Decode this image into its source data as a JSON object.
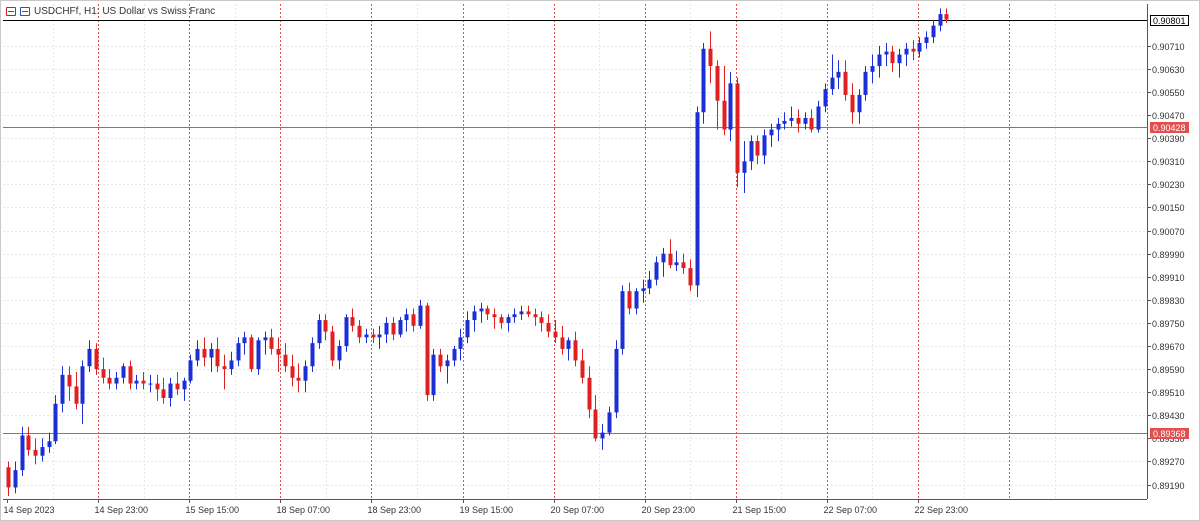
{
  "window": {
    "title": "USDCHFf, H1:  US Dollar vs Swiss Franc",
    "icons": [
      "chart-window-icon",
      "chart-properties-icon"
    ]
  },
  "colors": {
    "background": "#ffffff",
    "grid": "#e6e6e6",
    "bull": "#1a2fd6",
    "bear": "#e02020",
    "separator": "#e05050",
    "level_line": "#e05050",
    "bid_line": "#000000",
    "axis_text": "#333333"
  },
  "price_badges": {
    "bid": "0.90801",
    "level_upper": "0.90428",
    "level_lower": "0.89368"
  },
  "chart_data": {
    "type": "candlestick",
    "symbol": "USDCHFf",
    "timeframe": "H1",
    "description": "US Dollar vs Swiss Franc",
    "y_ticks": [
      "0.90710",
      "0.90630",
      "0.90550",
      "0.90470",
      "0.90390",
      "0.90310",
      "0.90230",
      "0.90150",
      "0.90070",
      "0.89990",
      "0.89910",
      "0.89830",
      "0.89750",
      "0.89670",
      "0.89590",
      "0.89510",
      "0.89430",
      "0.89350",
      "0.89270",
      "0.89190"
    ],
    "ylim": [
      0.8914,
      0.90855
    ],
    "x_labels": [
      "14 Sep 2023",
      "14 Sep 23:00",
      "15 Sep 15:00",
      "18 Sep 07:00",
      "18 Sep 23:00",
      "19 Sep 15:00",
      "20 Sep 07:00",
      "20 Sep 23:00",
      "21 Sep 15:00",
      "22 Sep 07:00",
      "22 Sep 23:00"
    ],
    "horizontal_levels": [
      0.90428,
      0.89368
    ],
    "bid_price": 0.90801,
    "grid": true,
    "candles": [
      [
        0.8925,
        0.8927,
        0.8915,
        0.8918
      ],
      [
        0.8918,
        0.8927,
        0.8916,
        0.8924
      ],
      [
        0.8924,
        0.8939,
        0.8922,
        0.8936
      ],
      [
        0.8936,
        0.8939,
        0.8929,
        0.8931
      ],
      [
        0.8931,
        0.8935,
        0.8926,
        0.8929
      ],
      [
        0.8929,
        0.8935,
        0.8927,
        0.8932
      ],
      [
        0.8932,
        0.8937,
        0.893,
        0.8934
      ],
      [
        0.8934,
        0.895,
        0.8933,
        0.8947
      ],
      [
        0.8947,
        0.896,
        0.8944,
        0.8957
      ],
      [
        0.8957,
        0.896,
        0.8948,
        0.8953
      ],
      [
        0.8953,
        0.8958,
        0.8945,
        0.8947
      ],
      [
        0.8947,
        0.8962,
        0.894,
        0.896
      ],
      [
        0.896,
        0.8969,
        0.8958,
        0.8966
      ],
      [
        0.8966,
        0.8968,
        0.8957,
        0.8959
      ],
      [
        0.8959,
        0.8963,
        0.8954,
        0.8956
      ],
      [
        0.8956,
        0.8959,
        0.8952,
        0.8954
      ],
      [
        0.8954,
        0.8958,
        0.8952,
        0.8956
      ],
      [
        0.8956,
        0.8961,
        0.8954,
        0.896
      ],
      [
        0.896,
        0.8962,
        0.8952,
        0.8954
      ],
      [
        0.8954,
        0.8957,
        0.8952,
        0.8955
      ],
      [
        0.8955,
        0.8958,
        0.8952,
        0.8954
      ],
      [
        0.8954,
        0.8957,
        0.8951,
        0.8954
      ],
      [
        0.8954,
        0.8957,
        0.8948,
        0.8952
      ],
      [
        0.8952,
        0.8956,
        0.8947,
        0.8949
      ],
      [
        0.8949,
        0.8956,
        0.8946,
        0.8954
      ],
      [
        0.8954,
        0.8958,
        0.895,
        0.8952
      ],
      [
        0.8952,
        0.8956,
        0.8948,
        0.8955
      ],
      [
        0.8955,
        0.8964,
        0.8954,
        0.8962
      ],
      [
        0.8962,
        0.8969,
        0.896,
        0.8966
      ],
      [
        0.8966,
        0.897,
        0.896,
        0.8963
      ],
      [
        0.8963,
        0.8968,
        0.8958,
        0.8966
      ],
      [
        0.8966,
        0.897,
        0.8958,
        0.896
      ],
      [
        0.896,
        0.8964,
        0.8952,
        0.8959
      ],
      [
        0.8959,
        0.8965,
        0.8957,
        0.8962
      ],
      [
        0.8962,
        0.897,
        0.896,
        0.8968
      ],
      [
        0.8968,
        0.8972,
        0.8964,
        0.897
      ],
      [
        0.897,
        0.8971,
        0.8958,
        0.8959
      ],
      [
        0.8959,
        0.897,
        0.8957,
        0.8969
      ],
      [
        0.8969,
        0.8972,
        0.8964,
        0.897
      ],
      [
        0.897,
        0.8973,
        0.8964,
        0.8966
      ],
      [
        0.8966,
        0.897,
        0.8958,
        0.8964
      ],
      [
        0.8964,
        0.8968,
        0.8958,
        0.896
      ],
      [
        0.896,
        0.8964,
        0.8953,
        0.8956
      ],
      [
        0.8956,
        0.8961,
        0.8951,
        0.8955
      ],
      [
        0.8955,
        0.8962,
        0.8951,
        0.896
      ],
      [
        0.896,
        0.897,
        0.8958,
        0.8968
      ],
      [
        0.8968,
        0.8978,
        0.8966,
        0.8976
      ],
      [
        0.8976,
        0.8978,
        0.8969,
        0.8972
      ],
      [
        0.8972,
        0.8974,
        0.896,
        0.8962
      ],
      [
        0.8962,
        0.8969,
        0.8959,
        0.8967
      ],
      [
        0.8967,
        0.8978,
        0.8965,
        0.8977
      ],
      [
        0.8977,
        0.898,
        0.8972,
        0.8974
      ],
      [
        0.8974,
        0.8976,
        0.8968,
        0.897
      ],
      [
        0.897,
        0.8973,
        0.8968,
        0.8971
      ],
      [
        0.8971,
        0.8973,
        0.8968,
        0.897
      ],
      [
        0.897,
        0.8974,
        0.8966,
        0.8971
      ],
      [
        0.8971,
        0.8977,
        0.8968,
        0.8975
      ],
      [
        0.8975,
        0.8977,
        0.8969,
        0.8971
      ],
      [
        0.8971,
        0.8977,
        0.897,
        0.8976
      ],
      [
        0.8976,
        0.898,
        0.8972,
        0.8978
      ],
      [
        0.8978,
        0.898,
        0.8972,
        0.8974
      ],
      [
        0.8974,
        0.8983,
        0.8973,
        0.8981
      ],
      [
        0.8981,
        0.8982,
        0.8948,
        0.895
      ],
      [
        0.895,
        0.8966,
        0.8948,
        0.8964
      ],
      [
        0.8964,
        0.8966,
        0.8958,
        0.896
      ],
      [
        0.896,
        0.8964,
        0.8954,
        0.8962
      ],
      [
        0.8962,
        0.8967,
        0.896,
        0.8966
      ],
      [
        0.8966,
        0.8973,
        0.8962,
        0.897
      ],
      [
        0.897,
        0.8979,
        0.8968,
        0.8976
      ],
      [
        0.8976,
        0.8981,
        0.8972,
        0.8979
      ],
      [
        0.8979,
        0.8982,
        0.8975,
        0.898
      ],
      [
        0.898,
        0.8981,
        0.8976,
        0.8978
      ],
      [
        0.8978,
        0.898,
        0.8973,
        0.8977
      ],
      [
        0.8977,
        0.8978,
        0.8973,
        0.8975
      ],
      [
        0.8975,
        0.8978,
        0.8972,
        0.8977
      ],
      [
        0.8977,
        0.898,
        0.8975,
        0.8978
      ],
      [
        0.8978,
        0.8981,
        0.8976,
        0.8979
      ],
      [
        0.8979,
        0.8981,
        0.8977,
        0.8978
      ],
      [
        0.8978,
        0.898,
        0.8974,
        0.8977
      ],
      [
        0.8977,
        0.8979,
        0.8972,
        0.8975
      ],
      [
        0.8975,
        0.8978,
        0.897,
        0.8972
      ],
      [
        0.8972,
        0.8976,
        0.8968,
        0.897
      ],
      [
        0.897,
        0.8974,
        0.8964,
        0.8966
      ],
      [
        0.8966,
        0.897,
        0.8962,
        0.8969
      ],
      [
        0.8969,
        0.8972,
        0.896,
        0.8962
      ],
      [
        0.8962,
        0.8966,
        0.8954,
        0.8956
      ],
      [
        0.8956,
        0.896,
        0.8942,
        0.8945
      ],
      [
        0.8945,
        0.895,
        0.8934,
        0.8935
      ],
      [
        0.8935,
        0.894,
        0.8931,
        0.8937
      ],
      [
        0.8937,
        0.8946,
        0.8936,
        0.8944
      ],
      [
        0.8944,
        0.8969,
        0.8942,
        0.8966
      ],
      [
        0.8966,
        0.8988,
        0.8964,
        0.8986
      ],
      [
        0.8986,
        0.8989,
        0.8978,
        0.898
      ],
      [
        0.898,
        0.8987,
        0.8978,
        0.8986
      ],
      [
        0.8986,
        0.899,
        0.8982,
        0.8987
      ],
      [
        0.8987,
        0.8993,
        0.8985,
        0.899
      ],
      [
        0.899,
        0.8998,
        0.8988,
        0.8996
      ],
      [
        0.8996,
        0.9001,
        0.8991,
        0.8999
      ],
      [
        0.8999,
        0.9004,
        0.8994,
        0.8995
      ],
      [
        0.8995,
        0.9,
        0.8993,
        0.8996
      ],
      [
        0.8996,
        0.8999,
        0.8992,
        0.8994
      ],
      [
        0.8994,
        0.8997,
        0.8986,
        0.8988
      ],
      [
        0.8988,
        0.905,
        0.8984,
        0.9048
      ],
      [
        0.9048,
        0.9072,
        0.9044,
        0.907
      ],
      [
        0.907,
        0.9076,
        0.9058,
        0.9064
      ],
      [
        0.9064,
        0.9066,
        0.9042,
        0.9052
      ],
      [
        0.9052,
        0.9064,
        0.904,
        0.9042
      ],
      [
        0.9042,
        0.9062,
        0.9038,
        0.9058
      ],
      [
        0.9058,
        0.906,
        0.9022,
        0.9027
      ],
      [
        0.9027,
        0.9038,
        0.902,
        0.9031
      ],
      [
        0.9031,
        0.904,
        0.9028,
        0.9038
      ],
      [
        0.9038,
        0.904,
        0.903,
        0.9033
      ],
      [
        0.9033,
        0.9042,
        0.903,
        0.904
      ],
      [
        0.904,
        0.9044,
        0.9036,
        0.9042
      ],
      [
        0.9042,
        0.9046,
        0.9038,
        0.9044
      ],
      [
        0.9044,
        0.9048,
        0.9042,
        0.9045
      ],
      [
        0.9045,
        0.905,
        0.9043,
        0.9046
      ],
      [
        0.9046,
        0.9049,
        0.9041,
        0.9044
      ],
      [
        0.9044,
        0.9048,
        0.9042,
        0.9046
      ],
      [
        0.9046,
        0.9049,
        0.9041,
        0.9042
      ],
      [
        0.9042,
        0.9052,
        0.9041,
        0.905
      ],
      [
        0.905,
        0.9058,
        0.9048,
        0.9056
      ],
      [
        0.9056,
        0.9068,
        0.9054,
        0.906
      ],
      [
        0.906,
        0.9066,
        0.9056,
        0.9062
      ],
      [
        0.9062,
        0.9066,
        0.9052,
        0.9054
      ],
      [
        0.9054,
        0.9058,
        0.9044,
        0.9048
      ],
      [
        0.9048,
        0.9056,
        0.9044,
        0.9054
      ],
      [
        0.9054,
        0.9064,
        0.9052,
        0.9062
      ],
      [
        0.9062,
        0.9068,
        0.9058,
        0.9064
      ],
      [
        0.9064,
        0.9071,
        0.906,
        0.9068
      ],
      [
        0.9068,
        0.9072,
        0.9064,
        0.9069
      ],
      [
        0.9069,
        0.9071,
        0.9062,
        0.9065
      ],
      [
        0.9065,
        0.907,
        0.906,
        0.9068
      ],
      [
        0.9068,
        0.9072,
        0.9064,
        0.907
      ],
      [
        0.907,
        0.9073,
        0.9066,
        0.9069
      ],
      [
        0.9069,
        0.9074,
        0.9067,
        0.9072
      ],
      [
        0.9072,
        0.9076,
        0.907,
        0.9074
      ],
      [
        0.9074,
        0.908,
        0.9072,
        0.9078
      ],
      [
        0.9078,
        0.9084,
        0.9076,
        0.9082
      ],
      [
        0.9082,
        0.9084,
        0.9079,
        0.90801
      ]
    ]
  }
}
